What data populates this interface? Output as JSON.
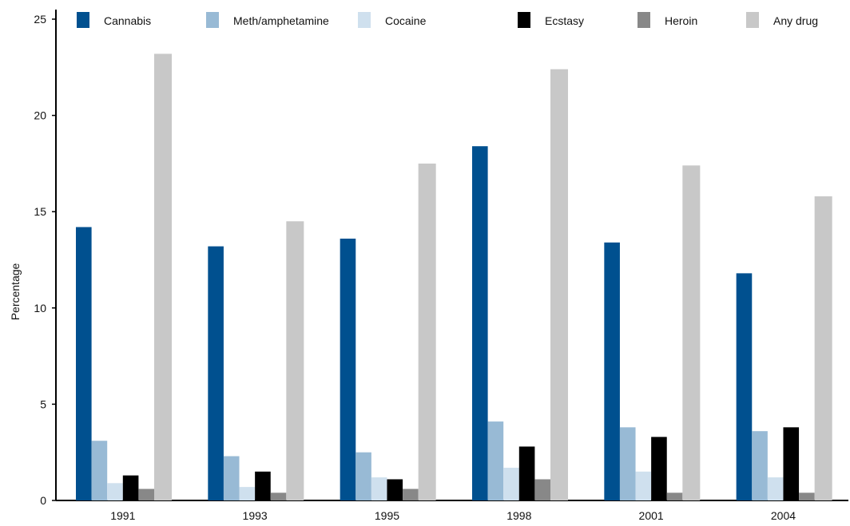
{
  "chart_data": {
    "type": "bar",
    "categories": [
      "1991",
      "1993",
      "1995",
      "1998",
      "2001",
      "2004"
    ],
    "series": [
      {
        "name": "Cannabis",
        "color": "#00508f",
        "values": [
          14.2,
          13.2,
          13.6,
          18.4,
          13.4,
          11.8
        ]
      },
      {
        "name": "Meth/amphetamine",
        "color": "#98bad5",
        "values": [
          3.1,
          2.3,
          2.5,
          4.1,
          3.8,
          3.6
        ]
      },
      {
        "name": "Cocaine",
        "color": "#cfe0ee",
        "values": [
          0.9,
          0.7,
          1.2,
          1.7,
          1.5,
          1.2
        ]
      },
      {
        "name": "Ecstasy",
        "color": "#000000",
        "values": [
          1.3,
          1.5,
          1.1,
          2.8,
          3.3,
          3.8
        ]
      },
      {
        "name": "Heroin",
        "color": "#888888",
        "values": [
          0.6,
          0.4,
          0.6,
          1.1,
          0.4,
          0.4
        ]
      },
      {
        "name": "Any drug",
        "color": "#c8c8c8",
        "values": [
          23.2,
          14.5,
          17.5,
          22.4,
          17.4,
          15.8
        ]
      }
    ],
    "title": "",
    "xlabel": "",
    "ylabel": "Percentage",
    "ylim": [
      0,
      25
    ],
    "yticks": [
      "0",
      "5",
      "10",
      "15",
      "20",
      "25"
    ],
    "grid": false,
    "legend_position": "top"
  }
}
